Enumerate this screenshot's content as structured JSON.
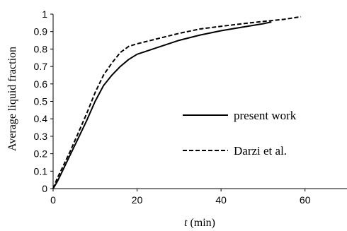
{
  "chart_data": {
    "type": "line",
    "title": "",
    "xlabel_italic": "t",
    "xlabel_rest": " (min)",
    "ylabel": "Average liquid fraction",
    "xlim": [
      0,
      70
    ],
    "ylim": [
      0,
      1
    ],
    "x_ticks": [
      0,
      20,
      40,
      60
    ],
    "y_ticks": [
      0,
      0.1,
      0.2,
      0.3,
      0.4,
      0.5,
      0.6,
      0.7,
      0.8,
      0.9,
      1
    ],
    "x_tick_labels": [
      "0",
      "20",
      "40",
      "60"
    ],
    "y_tick_labels": [
      "0",
      "0.1",
      "0.2",
      "0.3",
      "0.4",
      "0.5",
      "0.6",
      "0.7",
      "0.8",
      "0.9",
      "1"
    ],
    "grid": false,
    "legend_position": "center-right",
    "series": [
      {
        "name": "present work",
        "dash": "solid",
        "points": [
          [
            0,
            0
          ],
          [
            1,
            0.04
          ],
          [
            2,
            0.09
          ],
          [
            4,
            0.19
          ],
          [
            6,
            0.29
          ],
          [
            8,
            0.39
          ],
          [
            10,
            0.5
          ],
          [
            12,
            0.59
          ],
          [
            14,
            0.65
          ],
          [
            16,
            0.7
          ],
          [
            18,
            0.74
          ],
          [
            20,
            0.77
          ],
          [
            25,
            0.81
          ],
          [
            30,
            0.85
          ],
          [
            35,
            0.88
          ],
          [
            40,
            0.905
          ],
          [
            45,
            0.925
          ],
          [
            50,
            0.945
          ],
          [
            52,
            0.955
          ]
        ]
      },
      {
        "name": "Darzi et al.",
        "dash": "dashed",
        "points": [
          [
            0,
            0
          ],
          [
            1,
            0.06
          ],
          [
            2,
            0.11
          ],
          [
            4,
            0.21
          ],
          [
            6,
            0.32
          ],
          [
            8,
            0.43
          ],
          [
            10,
            0.55
          ],
          [
            12,
            0.65
          ],
          [
            14,
            0.72
          ],
          [
            16,
            0.78
          ],
          [
            18,
            0.815
          ],
          [
            20,
            0.83
          ],
          [
            25,
            0.86
          ],
          [
            30,
            0.89
          ],
          [
            35,
            0.915
          ],
          [
            40,
            0.93
          ],
          [
            45,
            0.945
          ],
          [
            50,
            0.958
          ],
          [
            55,
            0.97
          ],
          [
            59,
            0.985
          ]
        ]
      }
    ]
  }
}
